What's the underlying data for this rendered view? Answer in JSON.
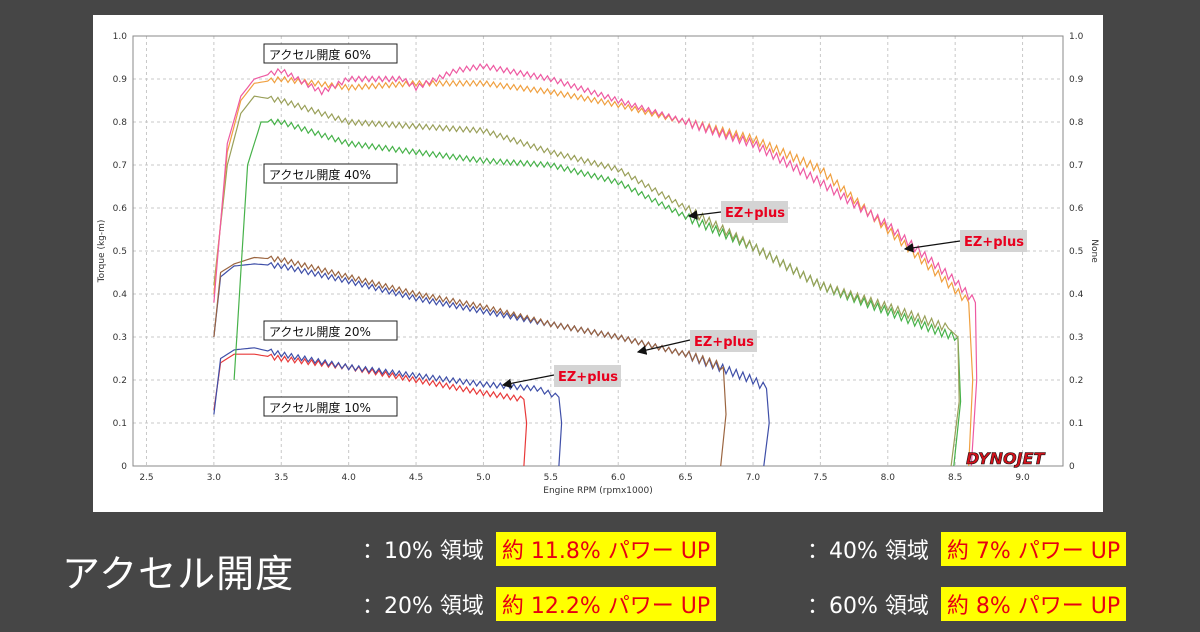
{
  "chart_data": {
    "type": "line",
    "x_axis": {
      "label": "Engine RPM (rpmx1000)",
      "range": [
        2.4,
        9.3
      ],
      "ticks": [
        "2.5",
        "3.0",
        "3.5",
        "4.0",
        "4.5",
        "5.0",
        "5.5",
        "6.0",
        "6.5",
        "7.0",
        "7.5",
        "8.0",
        "8.5",
        "9.0"
      ]
    },
    "y_axis_left": {
      "label": "Torque (kg-m)",
      "range": [
        0,
        1.0
      ],
      "ticks": [
        "0",
        "0.1",
        "0.2",
        "0.3",
        "0.4",
        "0.5",
        "0.6",
        "0.7",
        "0.8",
        "0.9",
        "1.0"
      ]
    },
    "y_axis_right": {
      "label": "None",
      "range": [
        0,
        1.0
      ],
      "ticks": [
        "0",
        "0.1",
        "0.2",
        "0.3",
        "0.4",
        "0.5",
        "0.6",
        "0.7",
        "0.8",
        "0.9",
        "1.0"
      ]
    },
    "grid": true,
    "logo": "DYNOJET",
    "series": [
      {
        "color": "#e83a3a",
        "x": [
          3.0,
          3.05,
          3.15,
          3.3,
          3.5,
          4.0,
          4.5,
          5.0,
          5.3,
          5.32,
          5.3
        ],
        "y": [
          0.13,
          0.24,
          0.26,
          0.26,
          0.25,
          0.23,
          0.2,
          0.17,
          0.155,
          0.1,
          0
        ]
      },
      {
        "color": "#3f4fa8",
        "x": [
          3.0,
          3.05,
          3.15,
          3.3,
          3.5,
          4.0,
          4.5,
          5.0,
          5.4,
          5.56,
          5.58,
          5.56
        ],
        "y": [
          0.12,
          0.25,
          0.27,
          0.275,
          0.26,
          0.23,
          0.21,
          0.19,
          0.18,
          0.16,
          0.1,
          0
        ]
      },
      {
        "color": "#3f4fa8",
        "x": [
          3.0,
          3.05,
          3.15,
          3.3,
          3.5,
          4.0,
          4.5,
          5.0,
          5.5,
          6.0,
          6.5,
          7.0,
          7.1,
          7.12,
          7.08
        ],
        "y": [
          0.3,
          0.44,
          0.465,
          0.47,
          0.465,
          0.43,
          0.39,
          0.36,
          0.33,
          0.3,
          0.26,
          0.2,
          0.18,
          0.1,
          0
        ]
      },
      {
        "color": "#9b6540",
        "x": [
          3.0,
          3.05,
          3.15,
          3.3,
          3.5,
          4.0,
          4.5,
          5.0,
          5.5,
          6.0,
          6.5,
          6.78,
          6.8,
          6.76
        ],
        "y": [
          0.3,
          0.45,
          0.47,
          0.485,
          0.48,
          0.44,
          0.4,
          0.37,
          0.33,
          0.3,
          0.26,
          0.23,
          0.12,
          0
        ]
      },
      {
        "color": "#47b24a",
        "x": [
          3.15,
          3.25,
          3.35,
          3.5,
          4.0,
          4.5,
          5.0,
          5.5,
          6.0,
          6.5,
          7.0,
          7.5,
          8.0,
          8.4,
          8.52,
          8.54,
          8.49
        ],
        "y": [
          0.2,
          0.7,
          0.8,
          0.8,
          0.75,
          0.73,
          0.71,
          0.7,
          0.66,
          0.58,
          0.51,
          0.42,
          0.36,
          0.31,
          0.3,
          0.15,
          0
        ]
      },
      {
        "color": "#9aa05a",
        "x": [
          3.0,
          3.1,
          3.2,
          3.3,
          3.5,
          4.0,
          4.5,
          5.0,
          5.5,
          6.0,
          6.5,
          7.0,
          7.5,
          8.0,
          8.45,
          8.52,
          8.53,
          8.47
        ],
        "y": [
          0.42,
          0.7,
          0.82,
          0.86,
          0.85,
          0.8,
          0.79,
          0.78,
          0.73,
          0.69,
          0.6,
          0.51,
          0.42,
          0.37,
          0.32,
          0.3,
          0.15,
          0
        ]
      },
      {
        "color": "#f0a040",
        "x": [
          3.0,
          3.1,
          3.2,
          3.3,
          3.5,
          4.0,
          4.5,
          5.0,
          5.5,
          6.0,
          6.5,
          7.0,
          7.5,
          8.0,
          8.5,
          8.6,
          8.63,
          8.6
        ],
        "y": [
          0.4,
          0.73,
          0.85,
          0.89,
          0.9,
          0.88,
          0.89,
          0.89,
          0.87,
          0.84,
          0.8,
          0.76,
          0.69,
          0.55,
          0.41,
          0.38,
          0.2,
          0
        ]
      },
      {
        "color": "#ee5aa2",
        "x": [
          3.0,
          3.1,
          3.2,
          3.3,
          3.5,
          3.8,
          4.0,
          4.4,
          4.5,
          4.8,
          5.0,
          5.5,
          6.0,
          6.5,
          7.0,
          7.5,
          8.0,
          8.5,
          8.65,
          8.66,
          8.62
        ],
        "y": [
          0.38,
          0.75,
          0.86,
          0.9,
          0.92,
          0.87,
          0.9,
          0.9,
          0.88,
          0.92,
          0.93,
          0.9,
          0.85,
          0.8,
          0.75,
          0.66,
          0.56,
          0.43,
          0.38,
          0.2,
          0
        ]
      }
    ],
    "throttle_labels": [
      "アクセル開度 60%",
      "アクセル開度 40%",
      "アクセル開度 20%",
      "アクセル開度 10%"
    ],
    "callouts": [
      "EZ+plus",
      "EZ+plus",
      "EZ+plus",
      "EZ+plus"
    ]
  },
  "footer": {
    "title": "アクセル開度",
    "rows": [
      {
        "label": "：10% 領域",
        "gain": "約 11.8% パワー UP"
      },
      {
        "label": "：40% 領域",
        "gain": "約 7% パワー UP"
      },
      {
        "label": "：20% 領域",
        "gain": "約 12.2% パワー UP"
      },
      {
        "label": "：60% 領域",
        "gain": "約 8% パワー UP"
      }
    ]
  }
}
